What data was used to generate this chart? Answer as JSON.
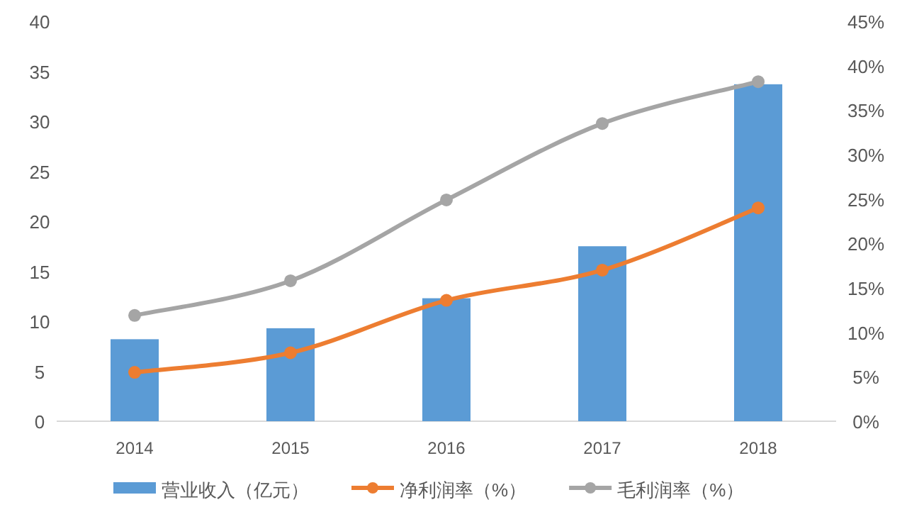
{
  "chart_data": {
    "type": "bar",
    "categories": [
      "2014",
      "2015",
      "2016",
      "2017",
      "2018"
    ],
    "series": [
      {
        "name": "营业收入（亿元）",
        "color": "#5b9bd5",
        "values": [
          8.2,
          9.3,
          12.3,
          17.5,
          33.7
        ]
      },
      {
        "name": "净利润率（%）",
        "type": "line",
        "axis": "y2",
        "color": "#ed7d31",
        "marker": "circle",
        "values": [
          5.5,
          7.7,
          13.6,
          17.0,
          24.0
        ]
      },
      {
        "name": "毛利润率（%）",
        "type": "line",
        "axis": "y2",
        "color": "#a5a5a5",
        "marker": "circle",
        "values": [
          11.9,
          15.8,
          24.9,
          33.5,
          38.2
        ]
      }
    ],
    "ylim": [
      0,
      40
    ],
    "yticks": [
      0,
      5,
      10,
      15,
      20,
      25,
      30,
      35,
      40
    ],
    "y2lim": [
      0,
      45
    ],
    "y2ticks": [
      {
        "value": 0,
        "label": "0%"
      },
      {
        "value": 5,
        "label": "5%"
      },
      {
        "value": 10,
        "label": "10%"
      },
      {
        "value": 15,
        "label": "15%"
      },
      {
        "value": 20,
        "label": "20%"
      },
      {
        "value": 25,
        "label": "25%"
      },
      {
        "value": 30,
        "label": "30%"
      },
      {
        "value": 35,
        "label": "35%"
      },
      {
        "value": 40,
        "label": "40%"
      },
      {
        "value": 45,
        "label": "45%"
      }
    ],
    "grid": false,
    "legend": "bottom"
  }
}
